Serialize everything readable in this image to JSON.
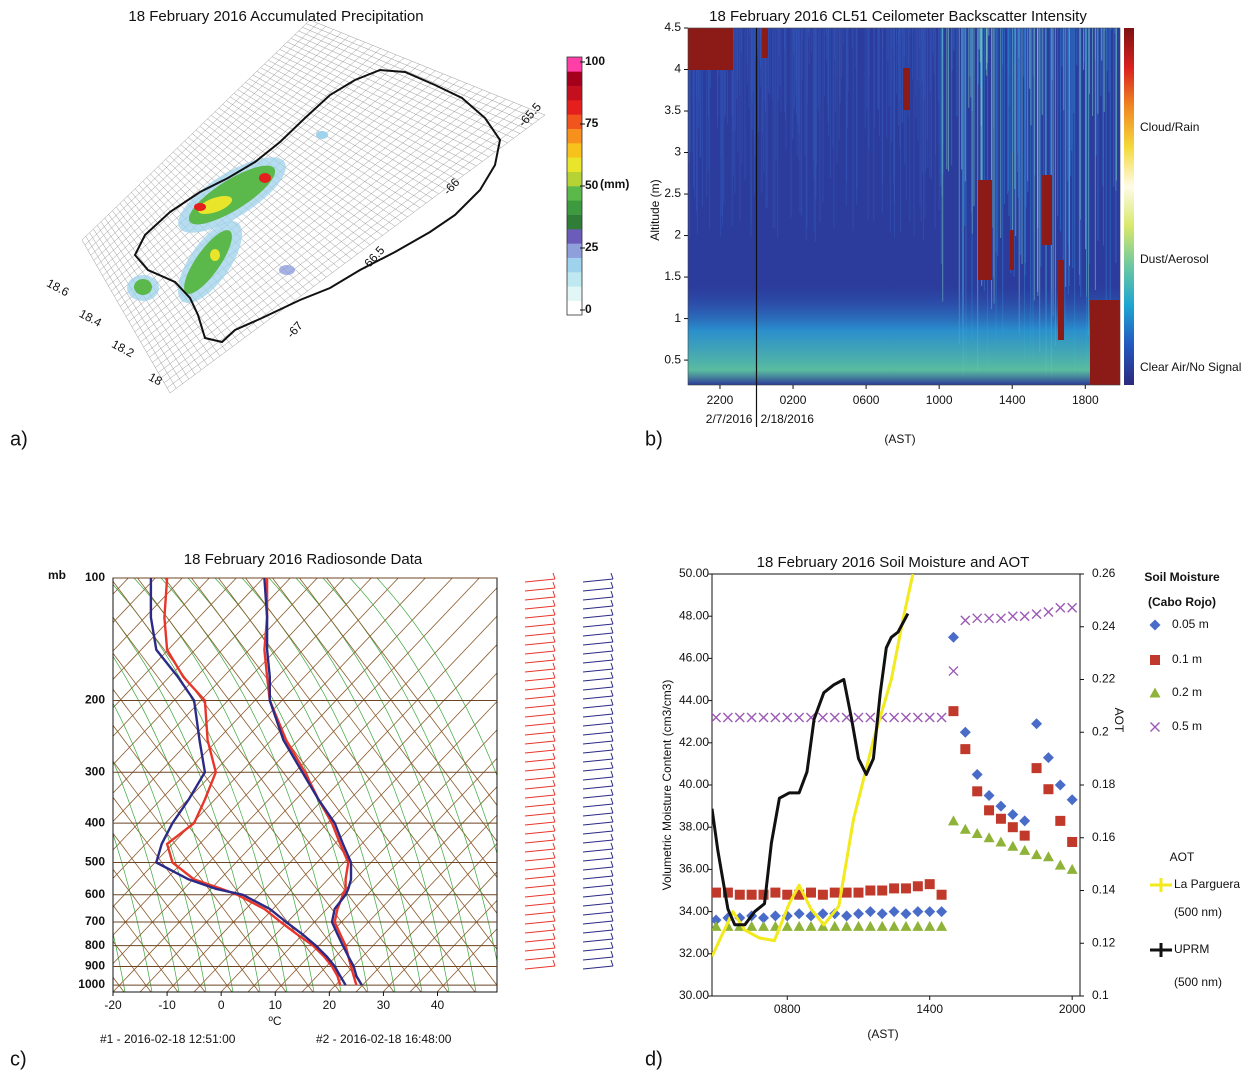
{
  "chart_data": [
    {
      "type": "surface",
      "panel_label": "a)",
      "title": "18 February 2016 Accumulated Precipitation",
      "lonlim": [
        -67.8,
        -65.4
      ],
      "latlim": [
        17.92,
        18.72
      ],
      "lonticks": [
        -67,
        -66.5,
        -66,
        -65.5
      ],
      "latticks": [
        18,
        18.2,
        18.4,
        18.6
      ],
      "colorbar": {
        "label": "(mm)",
        "lim": [
          0,
          100
        ],
        "ticks": [
          0,
          25,
          50,
          75,
          100
        ],
        "colors": [
          "#ffffff",
          "#e3f6f6",
          "#bfe8f0",
          "#9fd2ec",
          "#8f9fdc",
          "#6a5cb8",
          "#2f7d36",
          "#3d9a3f",
          "#5bb84a",
          "#b5d334",
          "#e9e52a",
          "#f7c21c",
          "#f7901c",
          "#f2541e",
          "#e51e1e",
          "#c40f1e",
          "#a4001c",
          "#ff3fa6"
        ]
      }
    },
    {
      "type": "heatmap",
      "panel_label": "b)",
      "title": "18 February 2016 CL51 Ceilometer Backscatter Intensity",
      "ylabel": "Altitude (m)",
      "xlabel": "(AST)",
      "ylim": [
        0.2,
        4.5
      ],
      "yticks": [
        0.5,
        1,
        1.5,
        2,
        2.5,
        3,
        3.5,
        4,
        4.5
      ],
      "xlim": [
        20.25,
        43.9
      ],
      "xticks": [
        {
          "value": 22,
          "label": "2200"
        },
        {
          "value": 26,
          "label": "0200"
        },
        {
          "value": 30,
          "label": "0600"
        },
        {
          "value": 34,
          "label": "1000"
        },
        {
          "value": 38,
          "label": "1400"
        },
        {
          "value": 42,
          "label": "1800"
        }
      ],
      "day_boundary": 24,
      "date_labels": [
        "2/7/2016",
        "2/18/2016"
      ],
      "colorbar": {
        "labels": [
          "Clear Air/No Signal",
          "Dust/Aerosol",
          "Cloud/Rain"
        ],
        "colors": [
          "#2c2a7e",
          "#2457bf",
          "#1da5d2",
          "#6cc8a0",
          "#d8e86a",
          "#fffbe8",
          "#f5d93a",
          "#f08a22",
          "#d92020",
          "#7e1212"
        ]
      }
    },
    {
      "type": "skewt",
      "panel_label": "c)",
      "title": "18 February 2016 Radiosonde Data",
      "ylabel": "mb",
      "xlabel": "ºC",
      "log_y": true,
      "ylim": [
        1040,
        100
      ],
      "yticks": [
        100,
        200,
        300,
        400,
        500,
        600,
        700,
        800,
        900,
        1000
      ],
      "xlim": [
        -20,
        51
      ],
      "xticks": [
        -20,
        -10,
        0,
        10,
        20,
        30,
        40
      ],
      "pressure": [
        1000,
        950,
        900,
        850,
        800,
        750,
        700,
        650,
        600,
        580,
        550,
        500,
        450,
        400,
        350,
        300,
        250,
        200,
        175,
        150,
        125,
        100
      ],
      "series": [
        {
          "name": "#1 - 2016-02-18 12:51:00",
          "color": "#e8362a",
          "temperature": [
            25,
            24.5,
            24,
            23.5,
            23,
            22,
            21,
            21.5,
            22.5,
            23,
            23,
            23.5,
            22,
            20.5,
            18,
            15.5,
            12,
            9,
            8.5,
            8,
            8.5,
            8.5
          ],
          "dewpoint": [
            22,
            21.5,
            20.5,
            19,
            17,
            14,
            11,
            8,
            3,
            0,
            -5,
            -9,
            -10,
            -5,
            -3,
            -1,
            -2.5,
            -3,
            -7,
            -10,
            -10.5,
            -10
          ]
        },
        {
          "name": "#2 - 2016-02-18 16:48:00",
          "color": "#2b2a86",
          "temperature": [
            26,
            25,
            24.5,
            23.5,
            22.5,
            21.5,
            20.5,
            21,
            23,
            23.5,
            24,
            24,
            22.5,
            21,
            18,
            15,
            11.5,
            9,
            9,
            8.5,
            8.5,
            8
          ],
          "dewpoint": [
            23,
            22,
            21,
            19.5,
            17.5,
            15,
            12,
            9,
            4,
            -1,
            -6,
            -12,
            -11,
            -9,
            -6,
            -3,
            -4,
            -5,
            -8,
            -12,
            -13,
            -13
          ]
        }
      ]
    },
    {
      "type": "scatter_line",
      "panel_label": "d)",
      "title": "18 February 2016 Soil Moisture and AOT",
      "xlabel": "(AST)",
      "ylabel": "Volumetric Moisture Content (cm3/cm3)",
      "y2label": "AOT",
      "xlim": [
        4.83,
        20.33
      ],
      "xticks": [
        {
          "value": 8,
          "label": "0800"
        },
        {
          "value": 14,
          "label": "1400"
        },
        {
          "value": 20,
          "label": "2000"
        }
      ],
      "ylim": [
        30,
        50
      ],
      "yticks": [
        {
          "value": 30,
          "label": "30.00"
        },
        {
          "value": 32,
          "label": "32.00"
        },
        {
          "value": 34,
          "label": "34.00"
        },
        {
          "value": 36,
          "label": "36.00"
        },
        {
          "value": 38,
          "label": "38.00"
        },
        {
          "value": 40,
          "label": "40.00"
        },
        {
          "value": 42,
          "label": "42.00"
        },
        {
          "value": 44,
          "label": "44.00"
        },
        {
          "value": 46,
          "label": "46.00"
        },
        {
          "value": 48,
          "label": "48.00"
        },
        {
          "value": 50,
          "label": "50.00"
        }
      ],
      "y2lim": [
        0.1,
        0.26
      ],
      "y2ticks": [
        0.1,
        0.12,
        0.14,
        0.16,
        0.18,
        0.2,
        0.22,
        0.24,
        0.26
      ],
      "legend_title": [
        "Soil Moisture",
        "(Cabo Rojo)"
      ],
      "legend2_title": "AOT",
      "series": [
        {
          "name": "0.05 m",
          "color": "#4a6cc9",
          "marker": "diamond",
          "x": [
            5,
            5.5,
            6,
            6.5,
            7,
            7.5,
            8,
            8.5,
            9,
            9.5,
            10,
            10.5,
            11,
            11.5,
            12,
            12.5,
            13,
            13.5,
            14,
            14.5,
            15,
            15.5,
            16,
            16.5,
            17,
            17.5,
            18,
            18.5,
            19,
            19.5,
            20
          ],
          "values": [
            33.6,
            33.7,
            33.7,
            33.8,
            33.7,
            33.8,
            33.8,
            33.9,
            33.8,
            33.9,
            33.9,
            33.8,
            33.9,
            34.0,
            33.9,
            34.0,
            33.9,
            34.0,
            34.0,
            34.0,
            47.0,
            42.5,
            40.5,
            39.5,
            39.0,
            38.6,
            38.3,
            42.9,
            41.3,
            40.0,
            39.3
          ]
        },
        {
          "name": "0.1 m",
          "color": "#c0392b",
          "marker": "square",
          "x": [
            5,
            5.5,
            6,
            6.5,
            7,
            7.5,
            8,
            8.5,
            9,
            9.5,
            10,
            10.5,
            11,
            11.5,
            12,
            12.5,
            13,
            13.5,
            14,
            14.5,
            15,
            15.5,
            16,
            16.5,
            17,
            17.5,
            18,
            18.5,
            19,
            19.5,
            20
          ],
          "values": [
            34.9,
            34.9,
            34.8,
            34.8,
            34.8,
            34.9,
            34.8,
            34.8,
            34.9,
            34.8,
            34.9,
            34.9,
            34.9,
            35.0,
            35.0,
            35.1,
            35.1,
            35.2,
            35.3,
            34.8,
            43.5,
            41.7,
            39.7,
            38.8,
            38.4,
            38.0,
            37.6,
            40.8,
            39.8,
            38.3,
            37.3
          ]
        },
        {
          "name": "0.2 m",
          "color": "#8fb339",
          "marker": "triangle",
          "x": [
            5,
            5.5,
            6,
            6.5,
            7,
            7.5,
            8,
            8.5,
            9,
            9.5,
            10,
            10.5,
            11,
            11.5,
            12,
            12.5,
            13,
            13.5,
            14,
            14.5,
            15,
            15.5,
            16,
            16.5,
            17,
            17.5,
            18,
            18.5,
            19,
            19.5,
            20
          ],
          "values": [
            33.3,
            33.3,
            33.3,
            33.3,
            33.3,
            33.3,
            33.3,
            33.3,
            33.3,
            33.3,
            33.3,
            33.3,
            33.3,
            33.3,
            33.3,
            33.3,
            33.3,
            33.3,
            33.3,
            33.3,
            38.3,
            37.9,
            37.7,
            37.5,
            37.3,
            37.1,
            36.9,
            36.7,
            36.6,
            36.2,
            36.0
          ]
        },
        {
          "name": "0.5 m",
          "color": "#9b59b6",
          "marker": "x",
          "x": [
            5,
            5.5,
            6,
            6.5,
            7,
            7.5,
            8,
            8.5,
            9,
            9.5,
            10,
            10.5,
            11,
            11.5,
            12,
            12.5,
            13,
            13.5,
            14,
            14.5,
            15,
            15.5,
            16,
            16.5,
            17,
            17.5,
            18,
            18.5,
            19,
            19.5,
            20
          ],
          "values": [
            43.2,
            43.2,
            43.2,
            43.2,
            43.2,
            43.2,
            43.2,
            43.2,
            43.2,
            43.2,
            43.2,
            43.2,
            43.2,
            43.2,
            43.2,
            43.2,
            43.2,
            43.2,
            43.2,
            43.2,
            45.4,
            47.8,
            47.9,
            47.9,
            47.9,
            48.0,
            48.0,
            48.1,
            48.2,
            48.4,
            48.4
          ]
        },
        {
          "name": "La Parguera",
          "sub_label": "(500 nm)",
          "color": "#f2ea1c",
          "marker": "line",
          "axis": "y2",
          "x": [
            4.83,
            5.71,
            6.21,
            6.83,
            7.46,
            8.08,
            8.5,
            9.0,
            9.54,
            10.17,
            10.79,
            11.63,
            12.38,
            12.88,
            13.29
          ],
          "values": [
            0.115,
            0.132,
            0.125,
            0.122,
            0.121,
            0.135,
            0.142,
            0.133,
            0.127,
            0.134,
            0.167,
            0.197,
            0.22,
            0.243,
            0.26
          ]
        },
        {
          "name": "UPRM",
          "sub_label": "(500 nm)",
          "color": "#111111",
          "marker": "line",
          "axis": "y2",
          "x": [
            4.83,
            5.08,
            5.5,
            5.79,
            6.21,
            6.63,
            7.04,
            7.33,
            7.67,
            8.08,
            8.5,
            8.83,
            9.13,
            9.54,
            9.96,
            10.38,
            10.71,
            11.0,
            11.33,
            11.63,
            11.92,
            12.17,
            12.38,
            12.67,
            13.08
          ],
          "values": [
            0.171,
            0.155,
            0.133,
            0.127,
            0.127,
            0.132,
            0.135,
            0.158,
            0.175,
            0.177,
            0.177,
            0.185,
            0.205,
            0.215,
            0.218,
            0.22,
            0.205,
            0.19,
            0.184,
            0.19,
            0.215,
            0.232,
            0.236,
            0.238,
            0.245
          ]
        }
      ]
    }
  ]
}
